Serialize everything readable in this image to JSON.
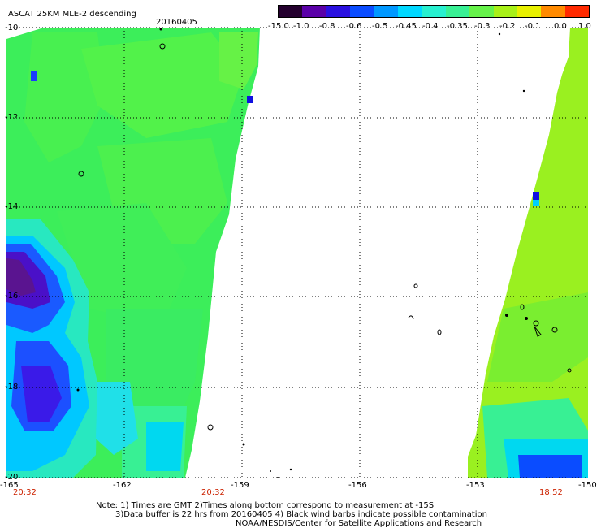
{
  "header": {
    "title": "ASCAT 25KM MLE-2 descending",
    "date": "20160405"
  },
  "colorbar": {
    "labels": [
      "-15.0",
      "-1.0",
      "-0.8",
      "-0.6",
      "-0.5",
      "-0.45",
      "-0.4",
      "-0.35",
      "-0.3",
      "-0.2",
      "-0.1",
      "0.0",
      "1.0"
    ],
    "colors": [
      "#24002e",
      "#5a00a8",
      "#2a10e0",
      "#0a4cff",
      "#0098ff",
      "#00d8ff",
      "#28f0d0",
      "#38f094",
      "#66f24a",
      "#a8f018",
      "#e8f000",
      "#ff8a00",
      "#ff2a00"
    ]
  },
  "map": {
    "lat_labels": [
      "-10",
      "-12",
      "-14",
      "-16",
      "-18",
      "-20"
    ],
    "lon_labels": [
      "-165",
      "-162",
      "-159",
      "-156",
      "-153",
      "-150"
    ],
    "time_labels": [
      "20:32",
      "20:32",
      "18:52"
    ]
  },
  "footer": {
    "note1": "Note: 1) Times are GMT 2)Times along bottom correspond to measurement at -15S",
    "note2": "3)Data buffer is 22 hrs from 20160405 4) Black wind barbs indicate possible contamination",
    "note3": "NOAA/NESDIS/Center for Satellite Applications and Research"
  }
}
